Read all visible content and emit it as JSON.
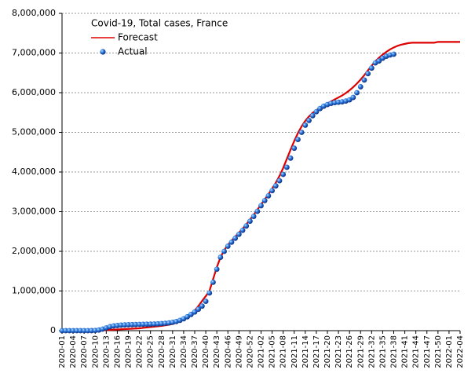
{
  "chart_data": {
    "type": "line",
    "title": "Covid-19, Total cases, France",
    "categories": [
      "2020-01",
      null,
      null,
      "2020-04",
      null,
      null,
      "2020-07",
      null,
      null,
      "2020-10",
      null,
      null,
      "2020-13",
      null,
      null,
      "2020-16",
      null,
      null,
      "2020-19",
      null,
      null,
      "2020-22",
      null,
      null,
      "2020-25",
      null,
      null,
      "2020-28",
      null,
      null,
      "2020-31",
      null,
      null,
      "2020-34",
      null,
      null,
      "2020-37",
      null,
      null,
      "2020-40",
      null,
      null,
      "2020-43",
      null,
      null,
      "2020-46",
      null,
      null,
      "2020-49",
      null,
      null,
      "2020-52",
      null,
      null,
      "2021-02",
      null,
      null,
      "2021-05",
      null,
      null,
      "2021-08",
      null,
      null,
      "2021-11",
      null,
      null,
      "2021-14",
      null,
      null,
      "2021-17",
      null,
      null,
      "2021-20",
      null,
      null,
      "2021-23",
      null,
      null,
      "2021-26",
      null,
      null,
      "2021-29",
      null,
      null,
      "2021-32",
      null,
      null,
      "2021-35",
      null,
      null,
      "2021-38",
      null,
      null,
      "2021-41",
      null,
      null,
      "2021-44",
      null,
      null,
      "2021-47",
      null,
      null,
      "2021-50",
      null,
      null,
      "2022-01",
      null,
      null,
      "2022-04"
    ],
    "series": [
      {
        "name": "Forecast",
        "color": "#dd0000",
        "style": "line",
        "values": [
          0,
          0,
          0,
          0,
          0,
          0,
          0,
          0,
          0,
          0,
          5000,
          10000,
          15000,
          20000,
          25000,
          30000,
          35000,
          40000,
          45000,
          50000,
          55000,
          60000,
          70000,
          80000,
          90000,
          100000,
          110000,
          120000,
          135000,
          150000,
          170000,
          200000,
          240000,
          290000,
          350000,
          420000,
          510000,
          620000,
          750000,
          870000,
          1000000,
          1300000,
          1600000,
          1850000,
          2030000,
          2160000,
          2270000,
          2370000,
          2470000,
          2570000,
          2680000,
          2800000,
          2920000,
          3050000,
          3180000,
          3310000,
          3440000,
          3580000,
          3730000,
          3900000,
          4100000,
          4330000,
          4560000,
          4780000,
          4980000,
          5150000,
          5290000,
          5400000,
          5490000,
          5560000,
          5620000,
          5680000,
          5730000,
          5780000,
          5830000,
          5880000,
          5930000,
          5990000,
          6060000,
          6140000,
          6230000,
          6330000,
          6440000,
          6560000,
          6680000,
          6790000,
          6880000,
          6960000,
          7030000,
          7090000,
          7140000,
          7180000,
          7210000,
          7230000,
          7250000,
          7260000,
          7260000,
          7260000,
          7260000,
          7260000,
          7260000,
          7260000,
          7280000,
          7280000,
          7280000,
          7280000,
          7280000,
          7280000,
          7280000
        ]
      },
      {
        "name": "Actual",
        "color": "#1560d0",
        "style": "scatter",
        "values": [
          0,
          0,
          0,
          0,
          0,
          0,
          0,
          0,
          1000,
          5000,
          16000,
          40000,
          70000,
          100000,
          120000,
          130000,
          140000,
          145000,
          150000,
          152000,
          155000,
          158000,
          160000,
          162000,
          165000,
          168000,
          172000,
          178000,
          185000,
          195000,
          210000,
          230000,
          260000,
          300000,
          350000,
          410000,
          470000,
          540000,
          620000,
          740000,
          950000,
          1220000,
          1550000,
          1850000,
          2000000,
          2130000,
          2230000,
          2330000,
          2430000,
          2530000,
          2640000,
          2760000,
          2880000,
          3010000,
          3150000,
          3280000,
          3400000,
          3530000,
          3650000,
          3780000,
          3940000,
          4120000,
          4350000,
          4600000,
          4820000,
          5000000,
          5180000,
          5300000,
          5420000,
          5520000,
          5600000,
          5660000,
          5700000,
          5730000,
          5750000,
          5760000,
          5770000,
          5790000,
          5820000,
          5880000,
          6000000,
          6150000,
          6320000,
          6480000,
          6620000,
          6750000,
          6800000,
          6870000,
          6920000,
          6950000,
          6970000,
          null,
          null,
          null,
          null,
          null,
          null,
          null,
          null,
          null,
          null,
          null,
          null,
          null,
          null,
          null,
          null,
          null,
          null
        ]
      }
    ],
    "ylim": [
      0,
      8000000
    ],
    "yticks": [
      0,
      {
        "value": 1000000,
        "label": "1,000,000"
      },
      {
        "value": 2000000,
        "label": "2,000,000"
      },
      {
        "value": 3000000,
        "label": "3,000,000"
      },
      {
        "value": 4000000,
        "label": "4,000,000"
      },
      {
        "value": 5000000,
        "label": "5,000,000"
      },
      {
        "value": 6000000,
        "label": "6,000,000"
      },
      {
        "value": 7000000,
        "label": "7,000,000"
      },
      {
        "value": 8000000,
        "label": "8,000,000"
      }
    ],
    "grid": true
  }
}
